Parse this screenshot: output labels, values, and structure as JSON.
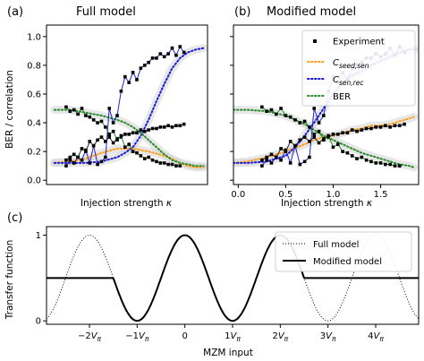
{
  "figure": {
    "panel_a": {
      "letter": "(a)",
      "title": "Full model"
    },
    "panel_b": {
      "letter": "(b)",
      "title": "Modified model"
    },
    "panel_c": {
      "letter": "(c)"
    }
  },
  "colors": {
    "experiment": "#1f24c8",
    "c_seed_sen": "#ff9f1c",
    "c_sen_rec": "#1a1ad9",
    "ber": "#2a8c2a",
    "band": "#d4d4d4"
  },
  "chart_data": [
    {
      "type": "line",
      "panel": "(a)",
      "title": "Full model",
      "xlabel": "Injection strength κ",
      "ylabel": "BER / correlation",
      "xlim": [
        0.0,
        2.05
      ],
      "ylim": [
        -0.03,
        1.08
      ],
      "yticks": [
        "0.0",
        "0.2",
        "0.4",
        "0.6",
        "0.8",
        "1.0"
      ],
      "xticks": [],
      "grid": false,
      "series": [
        {
          "name": "Experiment",
          "marker": "square",
          "curves": [
            {
              "x": [
                0.25,
                0.3,
                0.35,
                0.4,
                0.45,
                0.5,
                0.55,
                0.6,
                0.65,
                0.7,
                0.75,
                0.8,
                0.85,
                0.9,
                0.95,
                1.0,
                1.05,
                1.1,
                1.15,
                1.2,
                1.25,
                1.3,
                1.35,
                1.4,
                1.45,
                1.5,
                1.55,
                1.6,
                1.65,
                1.7,
                1.75
              ],
              "y": [
                0.1,
                0.14,
                0.12,
                0.16,
                0.14,
                0.21,
                0.12,
                0.24,
                0.11,
                0.13,
                0.16,
                0.5,
                0.4,
                0.45,
                0.62,
                0.72,
                0.68,
                0.75,
                0.7,
                0.78,
                0.8,
                0.82,
                0.85,
                0.85,
                0.88,
                0.86,
                0.88,
                0.92,
                0.87,
                0.93,
                0.89
              ]
            },
            {
              "x": [
                0.25,
                0.3,
                0.35,
                0.4,
                0.45,
                0.5,
                0.55,
                0.6,
                0.65,
                0.7,
                0.75,
                0.8,
                0.85,
                0.9,
                0.95,
                1.0,
                1.05,
                1.1,
                1.15,
                1.2,
                1.25,
                1.3,
                1.35,
                1.4,
                1.45,
                1.5,
                1.55,
                1.6,
                1.65,
                1.7,
                1.75
              ],
              "y": [
                0.14,
                0.16,
                0.18,
                0.16,
                0.22,
                0.2,
                0.27,
                0.24,
                0.28,
                0.3,
                0.27,
                0.3,
                0.26,
                0.29,
                0.3,
                0.32,
                0.32,
                0.33,
                0.33,
                0.35,
                0.34,
                0.35,
                0.36,
                0.36,
                0.37,
                0.37,
                0.38,
                0.37,
                0.38,
                0.38,
                0.39
              ]
            },
            {
              "x": [
                0.25,
                0.3,
                0.35,
                0.4,
                0.45,
                0.5,
                0.55,
                0.6,
                0.65,
                0.7,
                0.75,
                0.8,
                0.85,
                0.9,
                0.95,
                1.0,
                1.05,
                1.1,
                1.15,
                1.2,
                1.25,
                1.3,
                1.35,
                1.4,
                1.45,
                1.5,
                1.55,
                1.6,
                1.65,
                1.7
              ],
              "y": [
                0.51,
                0.48,
                0.49,
                0.46,
                0.5,
                0.45,
                0.44,
                0.42,
                0.4,
                0.41,
                0.37,
                0.32,
                0.34,
                0.28,
                0.31,
                0.23,
                0.25,
                0.2,
                0.19,
                0.17,
                0.15,
                0.16,
                0.14,
                0.13,
                0.12,
                0.12,
                0.11,
                0.11,
                0.1,
                0.1
              ]
            }
          ]
        },
        {
          "name": "C_seed,sen",
          "style": "dotted",
          "x": [
            0.1,
            0.3,
            0.5,
            0.7,
            0.9,
            1.1,
            1.3,
            1.5,
            1.6,
            1.7,
            1.8,
            1.9,
            2.0
          ],
          "y": [
            0.12,
            0.13,
            0.15,
            0.19,
            0.22,
            0.22,
            0.2,
            0.17,
            0.15,
            0.12,
            0.1,
            0.09,
            0.09
          ]
        },
        {
          "name": "C_sen,rec",
          "style": "dotted",
          "x": [
            0.1,
            0.3,
            0.5,
            0.7,
            0.9,
            1.0,
            1.1,
            1.2,
            1.3,
            1.4,
            1.5,
            1.6,
            1.7,
            1.8,
            1.9,
            2.0
          ],
          "y": [
            0.12,
            0.12,
            0.12,
            0.13,
            0.16,
            0.19,
            0.23,
            0.31,
            0.42,
            0.55,
            0.67,
            0.78,
            0.85,
            0.89,
            0.91,
            0.92
          ]
        },
        {
          "name": "BER",
          "style": "dotted",
          "x": [
            0.1,
            0.3,
            0.5,
            0.7,
            0.9,
            1.0,
            1.1,
            1.2,
            1.3,
            1.4,
            1.5,
            1.6,
            1.7,
            1.8,
            1.9,
            2.0
          ],
          "y": [
            0.49,
            0.49,
            0.47,
            0.45,
            0.42,
            0.4,
            0.37,
            0.33,
            0.28,
            0.23,
            0.18,
            0.14,
            0.12,
            0.11,
            0.1,
            0.1
          ]
        }
      ]
    },
    {
      "type": "line",
      "panel": "(b)",
      "title": "Modified model",
      "xlabel": "Injection strength κ",
      "xlim": [
        -0.05,
        1.9
      ],
      "ylim": [
        -0.03,
        1.08
      ],
      "xticks": [
        "0.0",
        "0.5",
        "1.0",
        "1.5"
      ],
      "xtick_values": [
        0.0,
        0.5,
        1.0,
        1.5
      ],
      "grid": false,
      "legend": "top-right",
      "series": [
        {
          "name": "Experiment",
          "marker": "square",
          "curves": [
            {
              "x": [
                0.25,
                0.3,
                0.35,
                0.4,
                0.45,
                0.5,
                0.55,
                0.6,
                0.65,
                0.7,
                0.75,
                0.8,
                0.85,
                0.9,
                0.95,
                1.0,
                1.05,
                1.1,
                1.15,
                1.2,
                1.25,
                1.3,
                1.35,
                1.4,
                1.45,
                1.5,
                1.55,
                1.6,
                1.65,
                1.7,
                1.75
              ],
              "y": [
                0.1,
                0.14,
                0.12,
                0.16,
                0.14,
                0.21,
                0.12,
                0.24,
                0.11,
                0.13,
                0.16,
                0.5,
                0.4,
                0.45,
                0.62,
                0.72,
                0.68,
                0.75,
                0.7,
                0.78,
                0.8,
                0.82,
                0.85,
                0.85,
                0.88,
                0.86,
                0.88,
                0.92,
                0.87,
                0.93,
                0.89
              ]
            },
            {
              "x": [
                0.25,
                0.3,
                0.35,
                0.4,
                0.45,
                0.5,
                0.55,
                0.6,
                0.65,
                0.7,
                0.75,
                0.8,
                0.85,
                0.9,
                0.95,
                1.0,
                1.05,
                1.1,
                1.15,
                1.2,
                1.25,
                1.3,
                1.35,
                1.4,
                1.45,
                1.5,
                1.55,
                1.6,
                1.65,
                1.7,
                1.75
              ],
              "y": [
                0.14,
                0.16,
                0.18,
                0.16,
                0.22,
                0.2,
                0.27,
                0.24,
                0.28,
                0.3,
                0.27,
                0.3,
                0.26,
                0.29,
                0.3,
                0.32,
                0.32,
                0.33,
                0.33,
                0.35,
                0.34,
                0.35,
                0.36,
                0.36,
                0.37,
                0.37,
                0.38,
                0.37,
                0.38,
                0.38,
                0.39
              ]
            },
            {
              "x": [
                0.25,
                0.3,
                0.35,
                0.4,
                0.45,
                0.5,
                0.55,
                0.6,
                0.65,
                0.7,
                0.75,
                0.8,
                0.85,
                0.9,
                0.95,
                1.0,
                1.05,
                1.1,
                1.15,
                1.2,
                1.25,
                1.3,
                1.35,
                1.4,
                1.45,
                1.5,
                1.55,
                1.6,
                1.65,
                1.7
              ],
              "y": [
                0.51,
                0.48,
                0.49,
                0.46,
                0.5,
                0.45,
                0.44,
                0.42,
                0.4,
                0.41,
                0.37,
                0.32,
                0.34,
                0.28,
                0.31,
                0.23,
                0.25,
                0.2,
                0.19,
                0.17,
                0.15,
                0.16,
                0.14,
                0.13,
                0.12,
                0.12,
                0.11,
                0.11,
                0.1,
                0.1
              ]
            }
          ]
        },
        {
          "name": "C_seed,sen",
          "style": "dotted",
          "x": [
            -0.05,
            0.1,
            0.3,
            0.5,
            0.7,
            0.8,
            0.9,
            1.0,
            1.1,
            1.2,
            1.3,
            1.4,
            1.5,
            1.6,
            1.7,
            1.8,
            1.85
          ],
          "y": [
            0.12,
            0.13,
            0.16,
            0.2,
            0.25,
            0.28,
            0.3,
            0.31,
            0.33,
            0.35,
            0.36,
            0.38,
            0.38,
            0.39,
            0.41,
            0.43,
            0.44
          ]
        },
        {
          "name": "C_sen,rec",
          "style": "dotted",
          "x": [
            -0.05,
            0.1,
            0.3,
            0.5,
            0.6,
            0.7,
            0.8,
            0.9,
            1.0,
            1.1,
            1.2,
            1.3,
            1.4,
            1.5,
            1.6,
            1.7,
            1.8,
            1.85
          ],
          "y": [
            0.12,
            0.12,
            0.13,
            0.17,
            0.23,
            0.31,
            0.4,
            0.5,
            0.6,
            0.68,
            0.73,
            0.76,
            0.8,
            0.83,
            0.86,
            0.89,
            0.91,
            0.91
          ]
        },
        {
          "name": "BER",
          "style": "dotted",
          "x": [
            -0.05,
            0.1,
            0.3,
            0.5,
            0.6,
            0.7,
            0.8,
            0.9,
            1.0,
            1.1,
            1.2,
            1.3,
            1.4,
            1.5,
            1.6,
            1.7,
            1.8,
            1.85
          ],
          "y": [
            0.49,
            0.49,
            0.48,
            0.45,
            0.42,
            0.39,
            0.35,
            0.31,
            0.28,
            0.25,
            0.22,
            0.19,
            0.17,
            0.15,
            0.13,
            0.11,
            0.1,
            0.09
          ]
        }
      ]
    },
    {
      "type": "line",
      "panel": "(c)",
      "xlabel": "MZM input",
      "ylabel": "Transfer function",
      "yticks": [
        "0",
        "1"
      ],
      "ylim": [
        -0.04,
        1.1
      ],
      "xlim": [
        -2.9,
        4.9
      ],
      "xticks": [
        "−2V_π",
        "−1V_π",
        "0",
        "1V_π",
        "2V_π",
        "3V_π",
        "4V_π"
      ],
      "xtick_values": [
        -2,
        -1,
        0,
        1,
        2,
        3,
        4
      ],
      "legend": "top-right",
      "series": [
        {
          "name": "Full model",
          "style": "dotted",
          "function": "cos²(πx/2)",
          "x_range": [
            -2.9,
            4.9
          ]
        },
        {
          "name": "Modified model",
          "style": "solid",
          "function": "cos²(πx/2) on [−1.5, 2.5], constant 0.5 elsewhere",
          "x_range": [
            -2.9,
            4.9
          ]
        }
      ]
    }
  ],
  "labels": {
    "a_ylabel": "BER / correlation",
    "a_xlabel": "Injection strength κ",
    "b_xlabel": "Injection strength κ",
    "c_ylabel": "Transfer function",
    "c_xlabel": "MZM input",
    "legend_ab": [
      "Experiment",
      "C_seed,sen",
      "C_sen,rec",
      "BER"
    ],
    "legend_c": [
      "Full model",
      "Modified model"
    ]
  }
}
